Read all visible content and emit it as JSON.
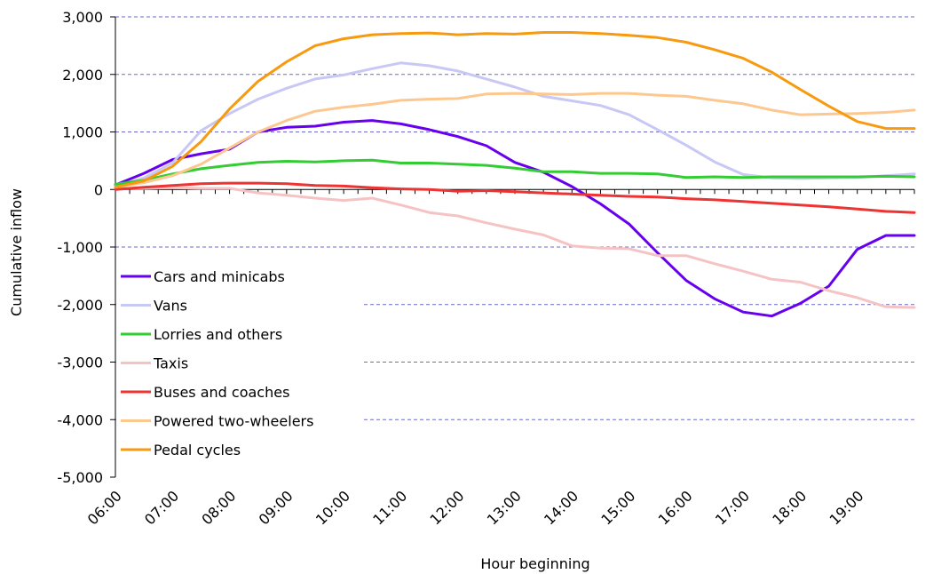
{
  "chart_data": {
    "type": "line",
    "title": "",
    "xlabel": "Hour beginning",
    "ylabel": "Cumulative inflow",
    "ylim": [
      -5000,
      3000
    ],
    "yticks": [
      3000,
      2000,
      1000,
      0,
      -1000,
      -2000,
      -3000,
      -4000,
      -5000
    ],
    "ytick_labels": [
      "3,000",
      "2,000",
      "1,000",
      "0",
      "-1,000",
      "-2,000",
      "-3,000",
      "-4,000",
      "-5,000"
    ],
    "xlim_hours": [
      6,
      20
    ],
    "xtick_labels": [
      "06:00",
      "07:00",
      "08:00",
      "09:00",
      "10:00",
      "11:00",
      "12:00",
      "13:00",
      "14:00",
      "15:00",
      "16:00",
      "17:00",
      "18:00",
      "19:00"
    ],
    "x": [
      6.25,
      6.5,
      6.75,
      7,
      7.25,
      7.5,
      7.75,
      8,
      8.25,
      8.5,
      8.75,
      9,
      9.25,
      9.5,
      9.75,
      10,
      10.25,
      10.5,
      10.75,
      11,
      11.25,
      11.5,
      11.75,
      12,
      12.25,
      12.5,
      12.75,
      13,
      13.25,
      13.5,
      13.75,
      14,
      14.25,
      14.5,
      14.75,
      15,
      15.25,
      15.5,
      15.75,
      16,
      16.25,
      16.5,
      16.75,
      17,
      17.25,
      17.5,
      17.75,
      18,
      18.25,
      18.5,
      18.75,
      19,
      19.25,
      19.5,
      19.75,
      20
    ],
    "grid": "horizontal dashed",
    "legend_position": "lower-left",
    "series": [
      {
        "name": "Cars and minicabs",
        "color": "#6600ee",
        "x": [
          6,
          6.5,
          7,
          7.5,
          8,
          8.5,
          9,
          9.5,
          10,
          10.5,
          11,
          11.5,
          12,
          12.5,
          13,
          13.5,
          14,
          14.5,
          15,
          15.5,
          16,
          16.5,
          17,
          17.5,
          18,
          18.5,
          19,
          19.5,
          20
        ],
        "values": [
          80,
          280,
          520,
          620,
          700,
          1000,
          1080,
          1100,
          1170,
          1200,
          1140,
          1040,
          920,
          760,
          470,
          300,
          50,
          -250,
          -600,
          -1100,
          -1580,
          -1900,
          -2130,
          -2200,
          -1980,
          -1680,
          -1040,
          -800,
          -800
        ]
      },
      {
        "name": "Vans",
        "color": "#c8c8f5",
        "x": [
          6,
          6.5,
          7,
          7.5,
          8,
          8.5,
          9,
          9.5,
          10,
          10.5,
          11,
          11.5,
          12,
          12.5,
          13,
          13.5,
          14,
          14.5,
          15,
          15.5,
          16,
          16.5,
          17,
          17.5,
          18,
          18.5,
          19,
          19.5,
          20
        ],
        "values": [
          60,
          200,
          460,
          1020,
          1320,
          1570,
          1760,
          1920,
          1990,
          2100,
          2200,
          2150,
          2060,
          1920,
          1780,
          1620,
          1540,
          1460,
          1300,
          1040,
          770,
          480,
          260,
          200,
          190,
          200,
          210,
          240,
          270
        ]
      },
      {
        "name": "Lorries and others",
        "color": "#33cc33",
        "x": [
          6,
          6.5,
          7,
          7.5,
          8,
          8.5,
          9,
          9.5,
          10,
          10.5,
          11,
          11.5,
          12,
          12.5,
          13,
          13.5,
          14,
          14.5,
          15,
          15.5,
          16,
          16.5,
          17,
          17.5,
          18,
          18.5,
          19,
          19.5,
          20
        ],
        "values": [
          90,
          160,
          270,
          360,
          420,
          470,
          490,
          480,
          500,
          510,
          460,
          460,
          440,
          420,
          370,
          310,
          310,
          280,
          280,
          270,
          210,
          220,
          210,
          220,
          220,
          220,
          220,
          230,
          220
        ]
      },
      {
        "name": "Taxis",
        "color": "#f5c3c3",
        "x": [
          6,
          6.5,
          7,
          7.5,
          8,
          8.5,
          9,
          9.5,
          10,
          10.5,
          11,
          11.5,
          12,
          12.5,
          13,
          13.5,
          14,
          14.5,
          15,
          15.5,
          16,
          16.5,
          17,
          17.5,
          18,
          18.5,
          19,
          19.5,
          20
        ],
        "values": [
          20,
          20,
          30,
          20,
          20,
          -60,
          -100,
          -150,
          -190,
          -150,
          -270,
          -400,
          -460,
          -580,
          -690,
          -790,
          -980,
          -1020,
          -1030,
          -1150,
          -1150,
          -1290,
          -1420,
          -1560,
          -1610,
          -1760,
          -1880,
          -2040,
          -2050
        ]
      },
      {
        "name": "Buses and coaches",
        "color": "#ee3333",
        "x": [
          6,
          6.5,
          7,
          7.5,
          8,
          8.5,
          9,
          9.5,
          10,
          10.5,
          11,
          11.5,
          12,
          12.5,
          13,
          13.5,
          14,
          14.5,
          15,
          15.5,
          16,
          16.5,
          17,
          17.5,
          18,
          18.5,
          19,
          19.5,
          20
        ],
        "values": [
          0,
          40,
          70,
          100,
          110,
          110,
          100,
          70,
          60,
          30,
          10,
          0,
          -30,
          -20,
          -40,
          -60,
          -80,
          -100,
          -120,
          -130,
          -160,
          -180,
          -210,
          -240,
          -270,
          -300,
          -340,
          -380,
          -400
        ]
      },
      {
        "name": "Powered two-wheelers",
        "color": "#fcc890",
        "x": [
          6,
          6.5,
          7,
          7.5,
          8,
          8.5,
          9,
          9.5,
          10,
          10.5,
          11,
          11.5,
          12,
          12.5,
          13,
          13.5,
          14,
          14.5,
          15,
          15.5,
          16,
          16.5,
          17,
          17.5,
          18,
          18.5,
          19,
          19.5,
          20
        ],
        "values": [
          40,
          120,
          240,
          440,
          720,
          1000,
          1200,
          1360,
          1430,
          1480,
          1550,
          1570,
          1580,
          1660,
          1670,
          1660,
          1650,
          1670,
          1670,
          1640,
          1620,
          1550,
          1490,
          1380,
          1300,
          1310,
          1320,
          1340,
          1380
        ]
      },
      {
        "name": "Pedal cycles",
        "color": "#f79a0f",
        "x": [
          6,
          6.5,
          7,
          7.5,
          8,
          8.5,
          9,
          9.5,
          10,
          10.5,
          11,
          11.5,
          12,
          12.5,
          13,
          13.5,
          14,
          14.5,
          15,
          15.5,
          16,
          16.5,
          17,
          17.5,
          18,
          18.5,
          19,
          19.5,
          20
        ],
        "values": [
          40,
          150,
          400,
          830,
          1400,
          1880,
          2220,
          2500,
          2620,
          2690,
          2710,
          2720,
          2690,
          2710,
          2700,
          2730,
          2730,
          2710,
          2680,
          2640,
          2560,
          2430,
          2280,
          2040,
          1740,
          1450,
          1180,
          1060,
          1060
        ]
      }
    ]
  }
}
